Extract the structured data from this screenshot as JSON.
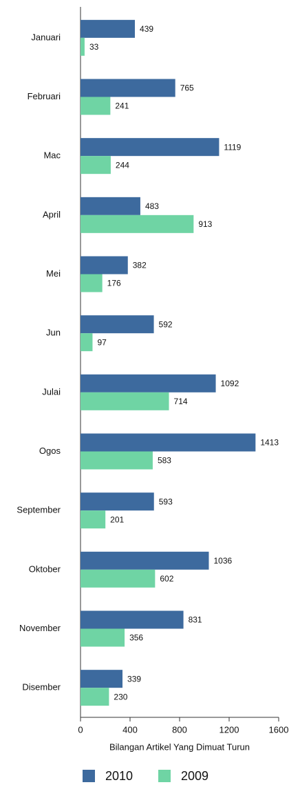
{
  "chart_data": {
    "type": "hbar",
    "categories": [
      "Januari",
      "Februari",
      "Mac",
      "April",
      "Mei",
      "Jun",
      "Julai",
      "Ogos",
      "September",
      "Oktober",
      "November",
      "Disember"
    ],
    "series": [
      {
        "name": "2010",
        "color": "#3d6a9e",
        "values": [
          439,
          765,
          1119,
          483,
          382,
          592,
          1092,
          1413,
          593,
          1036,
          831,
          339
        ]
      },
      {
        "name": "2009",
        "color": "#6fd4a4",
        "values": [
          33,
          241,
          244,
          913,
          176,
          97,
          714,
          583,
          201,
          602,
          356,
          230
        ]
      }
    ],
    "xlabel": "Bilangan Artikel Yang Dimuat Turun",
    "xlim": [
      0,
      1600
    ],
    "xticks": [
      0,
      400,
      800,
      1200,
      1600
    ],
    "legend": "bottom"
  }
}
